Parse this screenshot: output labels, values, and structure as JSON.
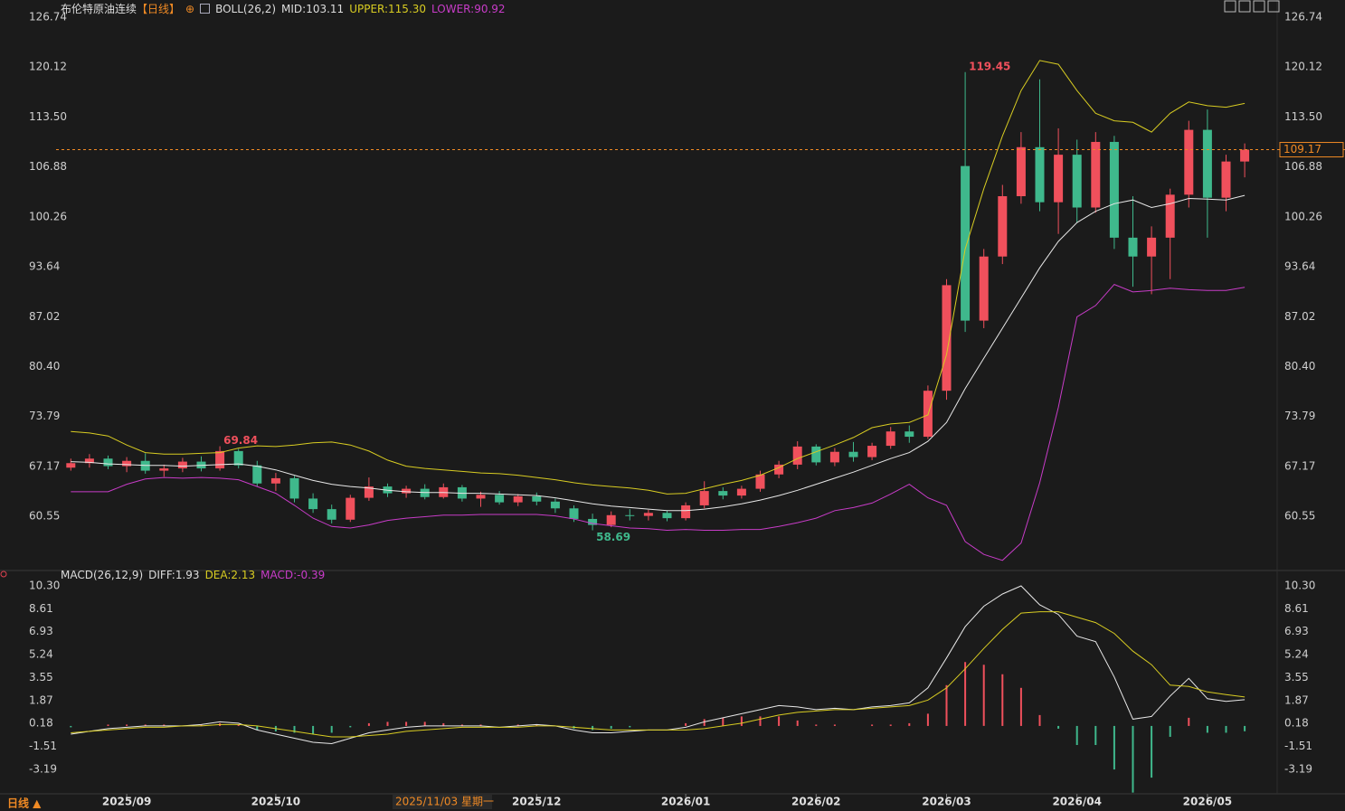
{
  "header": {
    "title": "布伦特原油连续",
    "period": "【日线】",
    "indicator": "BOLL(26,2)",
    "mid": "MID:103.11",
    "upper": "UPPER:115.30",
    "lower": "LOWER:90.92"
  },
  "macd_header": {
    "indicator": "MACD(26,12,9)",
    "diff": "DIFF:1.93",
    "dea": "DEA:2.13",
    "macd": "MACD:-0.39"
  },
  "footer": {
    "period": "日线 ▲",
    "cursor": "2025/11/03 星期一"
  },
  "chart_data": [
    {
      "type": "candlestick",
      "up_color": "#f0505c",
      "down_color": "#3fb88c",
      "categories": [
        null,
        null,
        null,
        "2025/09",
        null,
        null,
        null,
        null,
        null,
        null,
        null,
        "2025/10",
        null,
        null,
        null,
        null,
        null,
        null,
        null,
        null,
        null,
        null,
        null,
        null,
        null,
        "2025/12",
        null,
        null,
        null,
        null,
        null,
        null,
        null,
        "2026/01",
        null,
        null,
        null,
        null,
        null,
        null,
        "2026/02",
        null,
        null,
        null,
        null,
        null,
        null,
        "2026/03",
        null,
        null,
        null,
        null,
        null,
        null,
        "2026/04",
        null,
        null,
        null,
        null,
        null,
        null,
        "2026/05",
        null,
        null
      ],
      "open": [
        67.0,
        67.6,
        68.2,
        67.2,
        67.9,
        66.6,
        66.9,
        67.8,
        66.9,
        69.2,
        67.3,
        64.9,
        65.6,
        62.9,
        61.5,
        60.1,
        63.0,
        64.5,
        63.6,
        64.2,
        63.1,
        64.4,
        62.9,
        63.4,
        62.4,
        63.2,
        62.5,
        61.6,
        60.2,
        59.4,
        60.7,
        60.6,
        61.0,
        60.3,
        62.0,
        63.9,
        63.3,
        64.2,
        66.1,
        67.4,
        69.8,
        67.7,
        69.1,
        68.4,
        69.9,
        71.8,
        71.1,
        77.2,
        107.0,
        86.5,
        95.0,
        103.0,
        109.5,
        102.2,
        108.5,
        101.5,
        110.2,
        97.5,
        95.0,
        97.5,
        103.2,
        111.8,
        102.8,
        107.6
      ],
      "high": [
        68.2,
        68.8,
        68.6,
        68.4,
        68.9,
        67.4,
        68.3,
        68.5,
        69.84,
        69.5,
        67.9,
        66.3,
        65.9,
        63.6,
        62.1,
        63.4,
        65.7,
        64.9,
        64.6,
        64.8,
        64.9,
        64.7,
        63.8,
        63.9,
        63.5,
        63.7,
        62.9,
        62.0,
        60.9,
        61.2,
        61.5,
        61.4,
        61.3,
        62.4,
        65.2,
        64.4,
        64.6,
        66.6,
        67.9,
        70.5,
        70.1,
        69.6,
        70.4,
        70.3,
        72.4,
        72.6,
        77.9,
        92.0,
        119.45,
        96.0,
        104.5,
        111.5,
        118.5,
        112.0,
        110.5,
        111.5,
        111.0,
        103.0,
        99.0,
        104.0,
        113.0,
        114.5,
        108.5,
        110.0
      ],
      "low": [
        66.6,
        67.0,
        66.8,
        66.4,
        66.2,
        65.8,
        66.4,
        66.5,
        66.6,
        66.9,
        64.5,
        63.9,
        62.4,
        61.0,
        59.6,
        59.8,
        62.6,
        63.1,
        63.0,
        62.8,
        62.9,
        62.5,
        61.8,
        62.1,
        61.9,
        62.0,
        61.0,
        59.8,
        58.69,
        59.1,
        60.0,
        60.0,
        59.9,
        60.0,
        61.6,
        62.8,
        62.9,
        63.8,
        65.6,
        66.8,
        67.3,
        67.2,
        67.8,
        68.0,
        69.5,
        70.3,
        70.8,
        76.0,
        85.0,
        85.5,
        94.0,
        102.0,
        101.0,
        98.0,
        99.5,
        100.8,
        96.0,
        91.0,
        90.0,
        92.0,
        101.5,
        97.5,
        101.0,
        105.5
      ],
      "close": [
        67.6,
        68.2,
        67.2,
        67.9,
        66.6,
        66.9,
        67.8,
        66.9,
        69.2,
        67.3,
        64.9,
        65.6,
        62.9,
        61.5,
        60.1,
        63.0,
        64.5,
        63.6,
        64.2,
        63.1,
        64.4,
        62.9,
        63.4,
        62.4,
        63.2,
        62.5,
        61.6,
        60.2,
        59.4,
        60.7,
        60.6,
        61.0,
        60.3,
        62.0,
        63.9,
        63.3,
        64.2,
        66.1,
        67.4,
        69.8,
        67.7,
        69.1,
        68.4,
        69.9,
        71.8,
        71.1,
        77.2,
        91.2,
        86.5,
        95.0,
        103.0,
        109.5,
        102.2,
        108.5,
        101.5,
        110.2,
        97.5,
        95.0,
        97.5,
        103.2,
        111.8,
        102.8,
        107.6,
        109.17
      ],
      "series": [
        {
          "color": "#e8e8e8",
          "values": [
            67.8,
            67.7,
            67.5,
            67.4,
            67.3,
            67.3,
            67.2,
            67.3,
            67.4,
            67.5,
            67.2,
            66.7,
            66.0,
            65.3,
            64.8,
            64.5,
            64.3,
            64.0,
            63.8,
            63.7,
            63.7,
            63.6,
            63.6,
            63.5,
            63.4,
            63.3,
            63.0,
            62.6,
            62.2,
            61.9,
            61.7,
            61.5,
            61.3,
            61.3,
            61.5,
            61.8,
            62.2,
            62.7,
            63.3,
            64.0,
            64.8,
            65.6,
            66.4,
            67.3,
            68.2,
            69.0,
            70.5,
            73.0,
            77.5,
            81.5,
            85.5,
            89.5,
            93.5,
            97.0,
            99.5,
            101.0,
            102.0,
            102.5,
            101.5,
            102.0,
            102.7,
            102.6,
            102.5,
            103.11
          ]
        },
        {
          "color": "#d8cc22",
          "values": [
            71.8,
            71.6,
            71.2,
            70.0,
            69.0,
            68.8,
            68.8,
            68.9,
            69.0,
            69.6,
            69.9,
            69.8,
            70.0,
            70.3,
            70.4,
            70.0,
            69.2,
            68.0,
            67.2,
            66.9,
            66.7,
            66.5,
            66.3,
            66.2,
            66.0,
            65.7,
            65.4,
            65.0,
            64.7,
            64.5,
            64.3,
            64.0,
            63.5,
            63.6,
            64.2,
            64.8,
            65.3,
            66.0,
            67.0,
            68.2,
            69.1,
            70.0,
            71.0,
            72.3,
            72.8,
            73.0,
            74.0,
            82.0,
            96.0,
            104.0,
            111.0,
            117.0,
            121.0,
            120.5,
            117.0,
            114.0,
            113.0,
            112.8,
            111.5,
            114.0,
            115.5,
            115.0,
            114.8,
            115.3
          ]
        },
        {
          "color": "#c83cc8",
          "values": [
            63.8,
            63.8,
            63.8,
            64.8,
            65.5,
            65.7,
            65.6,
            65.7,
            65.6,
            65.4,
            64.5,
            63.6,
            62.0,
            60.3,
            59.2,
            59.0,
            59.4,
            60.0,
            60.3,
            60.5,
            60.7,
            60.7,
            60.8,
            60.8,
            60.8,
            60.8,
            60.6,
            60.2,
            59.6,
            59.3,
            59.0,
            58.9,
            58.7,
            58.8,
            58.7,
            58.7,
            58.8,
            58.8,
            59.2,
            59.7,
            60.3,
            61.3,
            61.7,
            62.3,
            63.5,
            64.8,
            63.0,
            62.0,
            57.2,
            55.5,
            54.7,
            57.0,
            65.0,
            75.0,
            87.0,
            88.5,
            91.3,
            90.3,
            90.5,
            90.8,
            90.6,
            90.5,
            90.5,
            90.92
          ]
        }
      ],
      "annotations": [
        119.45,
        69.84,
        58.69
      ],
      "last": 109.17,
      "last_color": "#f08a24",
      "ylim": [
        53.72,
        128.06
      ],
      "yticks": [
        60.55,
        67.17,
        73.79,
        {
          "value": 80.4,
          "label": "80.40"
        },
        87.02,
        93.64,
        100.26,
        106.88,
        {
          "value": 113.5,
          "label": "113.50"
        },
        120.12,
        126.74
      ]
    },
    {
      "type": "macd",
      "up_color": "#f0505c",
      "down_color": "#3fb88c",
      "series": [
        {
          "color": "#e8e8e8",
          "values": [
            -0.6,
            -0.4,
            -0.2,
            -0.1,
            0.0,
            0.0,
            0.0,
            0.1,
            0.3,
            0.2,
            -0.3,
            -0.6,
            -0.9,
            -1.2,
            -1.3,
            -0.9,
            -0.5,
            -0.3,
            -0.1,
            0.0,
            0.0,
            0.0,
            0.0,
            -0.1,
            0.0,
            0.1,
            0.0,
            -0.3,
            -0.5,
            -0.5,
            -0.4,
            -0.3,
            -0.3,
            -0.1,
            0.3,
            0.6,
            0.9,
            1.2,
            1.5,
            1.4,
            1.2,
            1.3,
            1.2,
            1.4,
            1.5,
            1.7,
            2.8,
            5.0,
            7.3,
            8.8,
            9.7,
            10.3,
            8.9,
            8.2,
            6.6,
            6.2,
            3.6,
            0.5,
            0.7,
            2.2,
            3.5,
            2.0,
            1.8,
            1.93
          ]
        },
        {
          "color": "#d8cc22",
          "values": [
            -0.5,
            -0.4,
            -0.3,
            -0.2,
            -0.1,
            -0.1,
            0.0,
            0.0,
            0.1,
            0.1,
            0.0,
            -0.2,
            -0.4,
            -0.6,
            -0.8,
            -0.8,
            -0.7,
            -0.6,
            -0.4,
            -0.3,
            -0.2,
            -0.1,
            -0.1,
            -0.1,
            -0.1,
            0.0,
            0.0,
            -0.1,
            -0.2,
            -0.3,
            -0.3,
            -0.3,
            -0.3,
            -0.3,
            -0.2,
            0.0,
            0.2,
            0.5,
            0.8,
            1.0,
            1.1,
            1.2,
            1.2,
            1.3,
            1.4,
            1.5,
            1.9,
            2.8,
            4.2,
            5.7,
            7.1,
            8.3,
            8.4,
            8.4,
            8.0,
            7.6,
            6.8,
            5.5,
            4.5,
            3.0,
            2.9,
            2.5,
            2.3,
            2.13
          ]
        }
      ],
      "histogram": [
        -0.1,
        0.0,
        0.1,
        0.1,
        0.1,
        0.1,
        0.0,
        0.1,
        0.2,
        0.1,
        -0.3,
        -0.4,
        -0.5,
        -0.6,
        -0.5,
        -0.1,
        0.2,
        0.3,
        0.3,
        0.3,
        0.2,
        0.1,
        0.1,
        0.0,
        0.1,
        0.1,
        0.0,
        -0.2,
        -0.3,
        -0.2,
        -0.1,
        0.0,
        0.0,
        0.2,
        0.5,
        0.6,
        0.7,
        0.7,
        0.7,
        0.4,
        0.1,
        0.1,
        0.0,
        0.1,
        0.1,
        0.2,
        0.9,
        3.0,
        4.7,
        4.5,
        3.8,
        2.8,
        0.8,
        -0.2,
        -1.4,
        -1.4,
        -3.2,
        -4.9,
        -3.8,
        -0.8,
        0.6,
        -0.5,
        -0.5,
        -0.39
      ],
      "ylim": [
        -4.99,
        10.83
      ],
      "yticks": [
        {
          "value": 10.3,
          "label": "10.30"
        },
        8.61,
        6.93,
        5.24,
        3.55,
        1.87,
        0.18,
        -1.51,
        -3.19
      ]
    }
  ]
}
